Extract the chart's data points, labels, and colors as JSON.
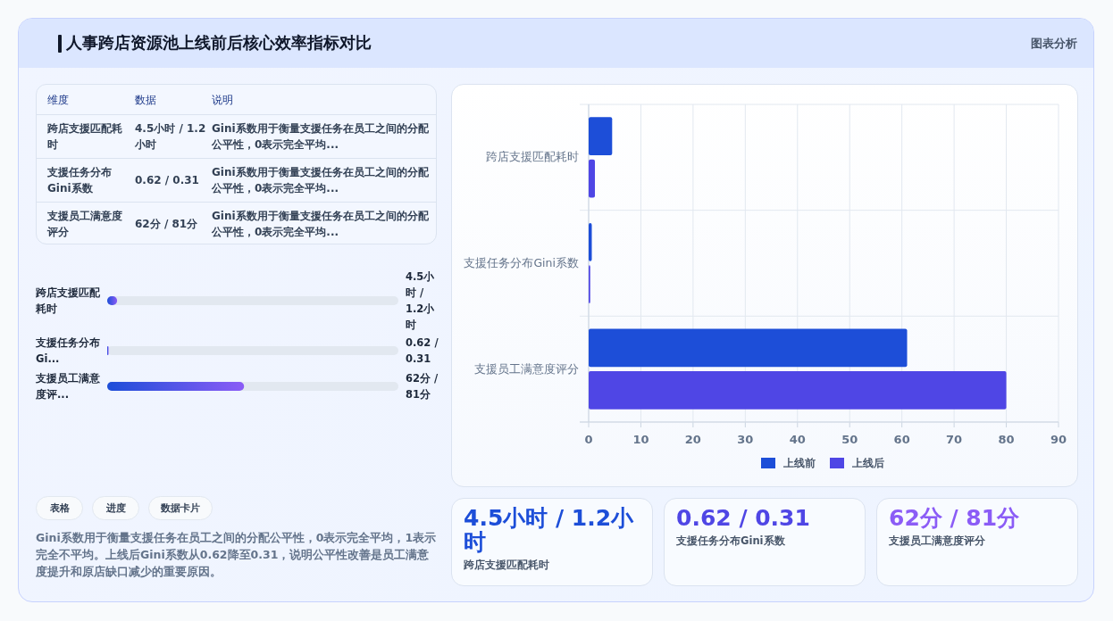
{
  "chart_data": [
    {
      "type": "other",
      "title": "人事跨店资源池上线前后核心效率指标对比",
      "annotations": [
        "图表分析"
      ]
    },
    {
      "type": "other",
      "annotations": [
        "维度",
        "数据",
        "说明",
        "跨店支援匹配耗时",
        "4.5小时 / 1.2小时",
        "Gini系数用于衡量支援任务在员工之间的分配公平性，0表示完全平均...",
        "支援任务分布Gini系数",
        "0.62 / 0.31",
        "Gini系数用于衡量支援任务在员工之间的分配公平性，0表示完全平均...",
        "支援员工满意度评分",
        "62分 / 81分",
        "Gini系数用于衡量支援任务在员工之间的分配公平性，0表示完全平均..."
      ]
    },
    {
      "type": "bar",
      "orientation": "horizontal",
      "categories": [
        "跨店支援匹配耗时",
        "支援任务分布Gi...",
        "支援员工满意度评..."
      ],
      "values": [
        4.5,
        0.62,
        62
      ],
      "value_labels": [
        "4.5小时 / 1.2小时",
        "0.62 / 0.31",
        "62分 / 81分"
      ]
    },
    {
      "type": "bar",
      "orientation": "horizontal",
      "categories": [
        "跨店支援匹配耗时",
        "支援任务分布Gini系数",
        "支援员工满意度评分"
      ],
      "series": [
        {
          "name": "上线前",
          "color": "#1d4ed8",
          "values": [
            4.5,
            0.6,
            61
          ]
        },
        {
          "name": "上线后",
          "color": "#4f46e5",
          "values": [
            1.2,
            0.3,
            80
          ]
        }
      ],
      "xlim": [
        0,
        90
      ],
      "xticks": [
        0,
        10,
        20,
        30,
        40,
        50,
        60,
        70,
        80,
        90
      ],
      "grid": true,
      "legend": "bottom"
    },
    {
      "type": "other",
      "annotations": [
        "表格",
        "进度",
        "数据卡片",
        "Gini系数用于衡量支援任务在员工之间的分配公平性，0表示完全平均，1表示完全不平均。上线后Gini系数从0.62降至0.31，说明公平性改善是员工满意度提升和原店缺口减少的重要原因。"
      ]
    },
    {
      "type": "other",
      "annotations": [
        "4.5小时 / 1.2小时",
        "跨店支援匹配耗时",
        "0.62 / 0.31",
        "支援任务分布Gini系数",
        "62分 / 81分",
        "支援员工满意度评分"
      ],
      "colors": [
        "#1d4ed8",
        "#4f46e5",
        "#8b5cf6"
      ]
    }
  ]
}
